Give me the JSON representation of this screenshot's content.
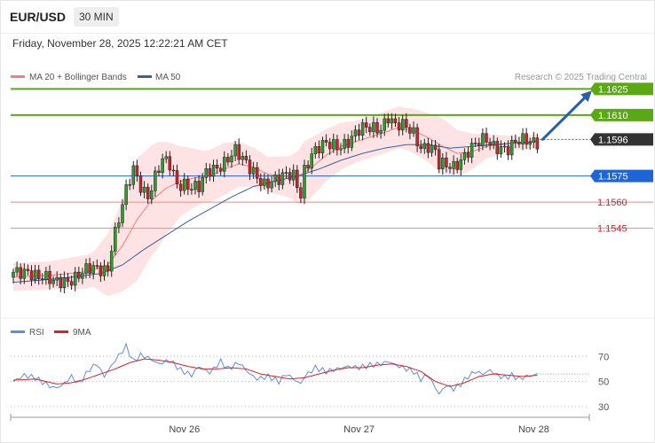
{
  "header": {
    "symbol": "EUR/USD",
    "timeframe": "30 MIN"
  },
  "datetime": "Friday, November 28, 2025 12:22:21 AM CET",
  "credit": "Research © 2025 Trading Central",
  "colors": {
    "bull": "#2e9c2e",
    "bear": "#c9252c",
    "ma20": "#f08080",
    "bb_fill": "#fde3e3",
    "ma50": "#3a5fa8",
    "green_line": "#5aa914",
    "blue_line": "#1e66d8",
    "red_line": "#e88a8a",
    "rsi": "#5b8ee6",
    "rsi_ma": "#e0201f",
    "arrow": "#2a5fa8"
  },
  "chart_data": [
    {
      "type": "candlestick",
      "legend": [
        {
          "name": "MA 20 + Bollinger Bands",
          "color": "#f08080"
        },
        {
          "name": "MA 50",
          "color": "#3a5fa8"
        }
      ],
      "ylim": [
        1.1495,
        1.1645
      ],
      "x_ticks": [
        {
          "label": "Nov 26",
          "index": 48
        },
        {
          "label": "Nov 27",
          "index": 96
        },
        {
          "label": "Nov 28",
          "index": 144
        }
      ],
      "last_price": {
        "label": "1.1596",
        "value": 1.1596
      },
      "levels": [
        {
          "label": "1.1625",
          "value": 1.1625,
          "kind": "green"
        },
        {
          "label": "1.1610",
          "value": 1.161,
          "kind": "green"
        },
        {
          "label": "1.1575",
          "value": 1.1575,
          "kind": "blue"
        },
        {
          "label": "1.1560",
          "value": 1.156,
          "kind": "red"
        },
        {
          "label": "1.1545",
          "value": 1.1545,
          "kind": "red"
        }
      ],
      "arrow": {
        "from": {
          "index": 144,
          "value": 1.1596
        },
        "to": {
          "index": 159,
          "value": 1.1624
        }
      },
      "anchors": {
        "close": [
          [
            0,
            1.1518
          ],
          [
            4,
            1.1522
          ],
          [
            8,
            1.1516
          ],
          [
            11,
            1.1513
          ],
          [
            14,
            1.1516
          ],
          [
            18,
            1.1518
          ],
          [
            22,
            1.1521
          ],
          [
            26,
            1.1523
          ],
          [
            27,
            1.1536
          ],
          [
            29,
            1.155
          ],
          [
            31,
            1.1565
          ],
          [
            33,
            1.1578
          ],
          [
            35,
            1.157
          ],
          [
            37,
            1.1565
          ],
          [
            39,
            1.1575
          ],
          [
            41,
            1.1583
          ],
          [
            43,
            1.158
          ],
          [
            45,
            1.157
          ],
          [
            47,
            1.1572
          ],
          [
            49,
            1.157
          ],
          [
            51,
            1.1568
          ],
          [
            53,
            1.1575
          ],
          [
            55,
            1.1578
          ],
          [
            57,
            1.1582
          ],
          [
            59,
            1.1587
          ],
          [
            61,
            1.159
          ],
          [
            63,
            1.1583
          ],
          [
            65,
            1.1578
          ],
          [
            67,
            1.1575
          ],
          [
            69,
            1.1572
          ],
          [
            71,
            1.1573
          ],
          [
            73,
            1.1572
          ],
          [
            75,
            1.1574
          ],
          [
            77,
            1.1575
          ],
          [
            79,
            1.1566
          ],
          [
            80,
            1.158
          ],
          [
            82,
            1.1588
          ],
          [
            84,
            1.159
          ],
          [
            86,
            1.1592
          ],
          [
            89,
            1.1593
          ],
          [
            92,
            1.1596
          ],
          [
            95,
            1.16
          ],
          [
            98,
            1.1602
          ],
          [
            101,
            1.1604
          ],
          [
            103,
            1.161
          ],
          [
            105,
            1.1603
          ],
          [
            108,
            1.1602
          ],
          [
            110,
            1.16
          ],
          [
            112,
            1.1593
          ],
          [
            114,
            1.1593
          ],
          [
            116,
            1.1588
          ],
          [
            117,
            1.158
          ],
          [
            119,
            1.158
          ],
          [
            121,
            1.1581
          ],
          [
            123,
            1.1586
          ],
          [
            125,
            1.159
          ],
          [
            127,
            1.1592
          ],
          [
            130,
            1.1595
          ],
          [
            132,
            1.1593
          ],
          [
            134,
            1.1593
          ],
          [
            136,
            1.1591
          ],
          [
            138,
            1.1593
          ],
          [
            140,
            1.1594
          ],
          [
            142,
            1.1595
          ],
          [
            144,
            1.1596
          ]
        ],
        "ma20": [
          [
            0,
            1.1517
          ],
          [
            10,
            1.1518
          ],
          [
            20,
            1.152
          ],
          [
            26,
            1.1524
          ],
          [
            30,
            1.1535
          ],
          [
            34,
            1.155
          ],
          [
            38,
            1.1561
          ],
          [
            42,
            1.1568
          ],
          [
            46,
            1.1572
          ],
          [
            50,
            1.1574
          ],
          [
            54,
            1.1575
          ],
          [
            58,
            1.1579
          ],
          [
            62,
            1.1582
          ],
          [
            66,
            1.158
          ],
          [
            70,
            1.1576
          ],
          [
            74,
            1.1575
          ],
          [
            78,
            1.1574
          ],
          [
            82,
            1.158
          ],
          [
            86,
            1.1587
          ],
          [
            90,
            1.1592
          ],
          [
            96,
            1.1596
          ],
          [
            102,
            1.16
          ],
          [
            106,
            1.1603
          ],
          [
            110,
            1.1601
          ],
          [
            114,
            1.1597
          ],
          [
            118,
            1.1592
          ],
          [
            122,
            1.1588
          ],
          [
            126,
            1.1589
          ],
          [
            130,
            1.1592
          ],
          [
            134,
            1.1593
          ],
          [
            138,
            1.1594
          ],
          [
            144,
            1.1595
          ]
        ],
        "bb_width": [
          [
            0,
            0.0008
          ],
          [
            10,
            0.0008
          ],
          [
            22,
            0.001
          ],
          [
            28,
            0.0022
          ],
          [
            34,
            0.0035
          ],
          [
            40,
            0.003
          ],
          [
            46,
            0.002
          ],
          [
            52,
            0.0015
          ],
          [
            58,
            0.0015
          ],
          [
            64,
            0.0012
          ],
          [
            70,
            0.001
          ],
          [
            76,
            0.0012
          ],
          [
            80,
            0.0018
          ],
          [
            86,
            0.0015
          ],
          [
            94,
            0.0012
          ],
          [
            102,
            0.0012
          ],
          [
            108,
            0.0012
          ],
          [
            114,
            0.0014
          ],
          [
            118,
            0.0016
          ],
          [
            124,
            0.0012
          ],
          [
            130,
            0.0007
          ],
          [
            138,
            0.0004
          ],
          [
            144,
            0.0004
          ]
        ],
        "ma50": [
          [
            0,
            1.1514
          ],
          [
            12,
            1.1516
          ],
          [
            24,
            1.1519
          ],
          [
            30,
            1.1524
          ],
          [
            36,
            1.1533
          ],
          [
            42,
            1.1541
          ],
          [
            48,
            1.1549
          ],
          [
            54,
            1.1556
          ],
          [
            60,
            1.1563
          ],
          [
            66,
            1.1569
          ],
          [
            72,
            1.1572
          ],
          [
            78,
            1.1575
          ],
          [
            84,
            1.1579
          ],
          [
            90,
            1.1584
          ],
          [
            96,
            1.1588
          ],
          [
            102,
            1.1591
          ],
          [
            108,
            1.1593
          ],
          [
            114,
            1.1593
          ],
          [
            120,
            1.1591
          ],
          [
            126,
            1.1592
          ],
          [
            132,
            1.1593
          ],
          [
            138,
            1.1594
          ],
          [
            144,
            1.1595
          ]
        ]
      }
    },
    {
      "type": "line",
      "legend": [
        {
          "name": "RSI",
          "color": "#5b8ee6"
        },
        {
          "name": "9MA",
          "color": "#e0201f"
        }
      ],
      "ylim": [
        25,
        85
      ],
      "y_ticks": [
        {
          "label": "70",
          "value": 70
        },
        {
          "label": "50",
          "value": 50
        },
        {
          "label": "30",
          "value": 30
        }
      ],
      "rsi_anchors": [
        [
          0,
          50
        ],
        [
          3,
          55
        ],
        [
          6,
          53
        ],
        [
          9,
          48
        ],
        [
          11,
          45
        ],
        [
          13,
          46
        ],
        [
          16,
          54
        ],
        [
          18,
          48
        ],
        [
          21,
          60
        ],
        [
          23,
          64
        ],
        [
          25,
          54
        ],
        [
          28,
          67
        ],
        [
          31,
          78
        ],
        [
          33,
          66
        ],
        [
          35,
          71
        ],
        [
          37,
          69
        ],
        [
          40,
          64
        ],
        [
          43,
          67
        ],
        [
          46,
          59
        ],
        [
          49,
          55
        ],
        [
          51,
          62
        ],
        [
          54,
          57
        ],
        [
          57,
          66
        ],
        [
          59,
          60
        ],
        [
          62,
          65
        ],
        [
          65,
          56
        ],
        [
          67,
          52
        ],
        [
          70,
          54
        ],
        [
          73,
          50
        ],
        [
          75,
          56
        ],
        [
          77,
          52
        ],
        [
          79,
          48
        ],
        [
          80,
          54
        ],
        [
          83,
          61
        ],
        [
          86,
          58
        ],
        [
          89,
          60
        ],
        [
          92,
          62
        ],
        [
          95,
          61
        ],
        [
          98,
          63
        ],
        [
          101,
          64
        ],
        [
          103,
          66
        ],
        [
          106,
          62
        ],
        [
          108,
          60
        ],
        [
          110,
          58
        ],
        [
          112,
          52
        ],
        [
          114,
          55
        ],
        [
          116,
          45
        ],
        [
          117,
          40
        ],
        [
          119,
          47
        ],
        [
          121,
          44
        ],
        [
          123,
          48
        ],
        [
          125,
          54
        ],
        [
          127,
          58
        ],
        [
          129,
          56
        ],
        [
          131,
          59
        ],
        [
          133,
          55
        ],
        [
          135,
          53
        ],
        [
          137,
          55
        ],
        [
          139,
          52
        ],
        [
          141,
          54
        ],
        [
          143,
          55
        ],
        [
          144,
          56
        ]
      ],
      "ma_anchors": [
        [
          0,
          51
        ],
        [
          6,
          52
        ],
        [
          12,
          48
        ],
        [
          16,
          49
        ],
        [
          20,
          52
        ],
        [
          24,
          56
        ],
        [
          28,
          60
        ],
        [
          32,
          65
        ],
        [
          36,
          68
        ],
        [
          40,
          67
        ],
        [
          44,
          65
        ],
        [
          48,
          62
        ],
        [
          52,
          60
        ],
        [
          56,
          60
        ],
        [
          60,
          61
        ],
        [
          64,
          60
        ],
        [
          68,
          56
        ],
        [
          72,
          54
        ],
        [
          76,
          52
        ],
        [
          80,
          53
        ],
        [
          84,
          56
        ],
        [
          88,
          59
        ],
        [
          92,
          61
        ],
        [
          96,
          61
        ],
        [
          100,
          63
        ],
        [
          104,
          64
        ],
        [
          108,
          62
        ],
        [
          112,
          58
        ],
        [
          116,
          50
        ],
        [
          120,
          46
        ],
        [
          124,
          49
        ],
        [
          128,
          54
        ],
        [
          132,
          56
        ],
        [
          136,
          55
        ],
        [
          140,
          54
        ],
        [
          144,
          55
        ]
      ]
    }
  ]
}
